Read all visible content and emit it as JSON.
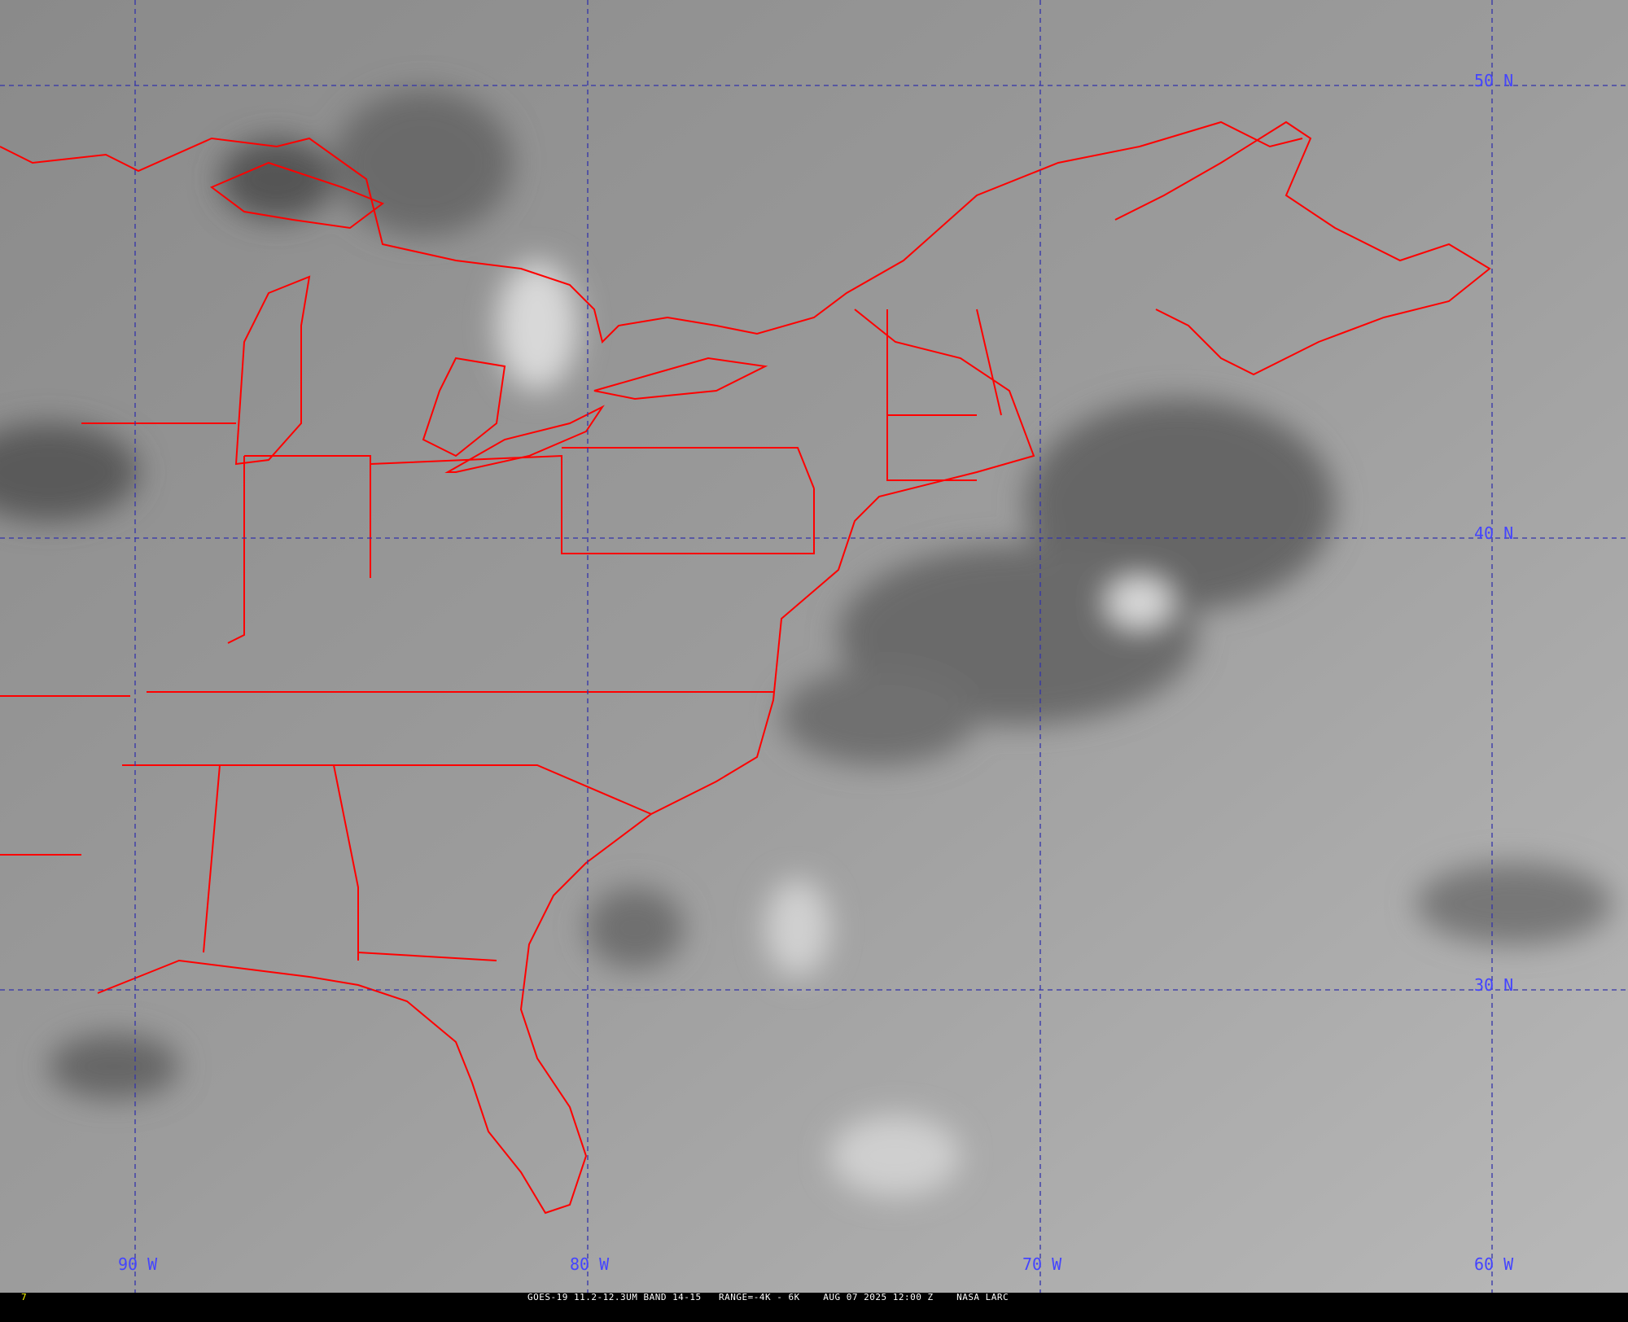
{
  "image": {
    "satellite": "GOES-19",
    "colors": {
      "boundaries": "#ff0000",
      "grid": "#3333aa",
      "grid_labels": "#4444ff",
      "frame_number": "#ffff00",
      "caption": "#ffffff"
    }
  },
  "grid": {
    "longitudes": [
      {
        "label": "90 W"
      },
      {
        "label": "80 W"
      },
      {
        "label": "70 W"
      },
      {
        "label": "60 W"
      }
    ],
    "latitudes": [
      {
        "label": "50 N"
      },
      {
        "label": "40 N"
      },
      {
        "label": "30 N"
      }
    ]
  },
  "caption": {
    "frame_number": "7",
    "text": "GOES-19 11.2-12.3UM BAND 14-15   RANGE=-4K - 6K    AUG 07 2025 12:00 Z    NASA LARC"
  }
}
